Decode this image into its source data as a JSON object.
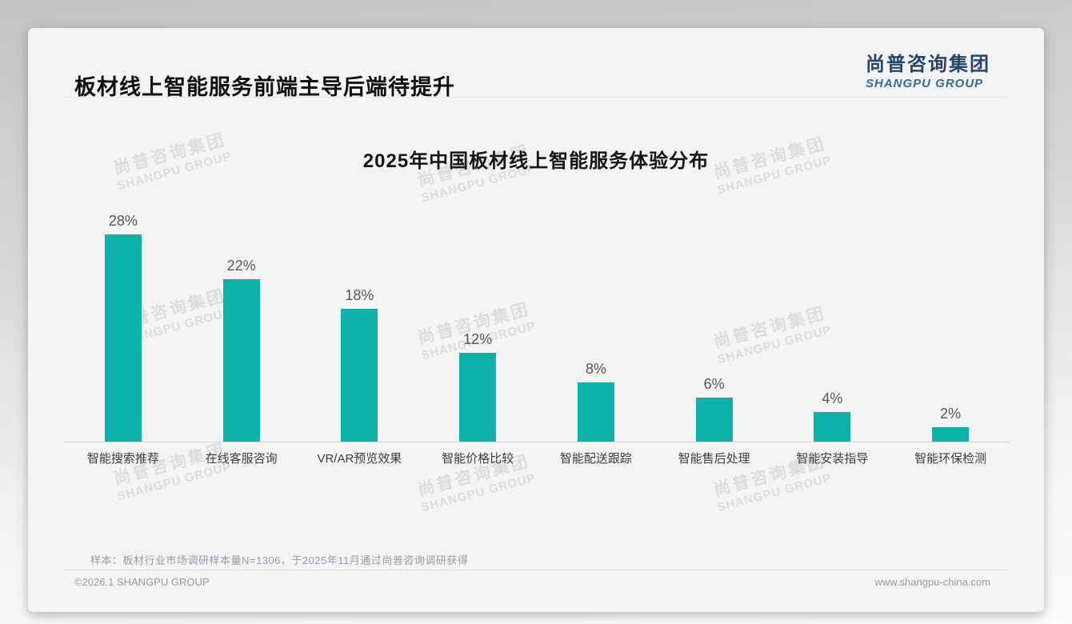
{
  "header": {
    "title": "板材线上智能服务前端主导后端待提升",
    "logo_cn": "尚普咨询集团",
    "logo_en": "SHANGPU GROUP"
  },
  "watermark": {
    "cn": "尚普咨询集团",
    "en": "SHANGPU GROUP"
  },
  "chart_data": {
    "type": "bar",
    "title": "2025年中国板材线上智能服务体验分布",
    "categories": [
      "智能搜索推荐",
      "在线客服咨询",
      "VR/AR预览效果",
      "智能价格比较",
      "智能配送跟踪",
      "智能售后处理",
      "智能安装指导",
      "智能环保检测"
    ],
    "values": [
      28,
      22,
      18,
      12,
      8,
      6,
      4,
      2
    ],
    "value_suffix": "%",
    "xlabel": "",
    "ylabel": "",
    "ylim": [
      0,
      30
    ],
    "grid": false,
    "legend_position": "none",
    "bar_color": "#0db3ab"
  },
  "note": "样本：板材行业市场调研样本量N=1306，于2025年11月通过尚普咨询调研获得",
  "footer": {
    "left": "©2026.1 SHANGPU GROUP",
    "right": "www.shangpu-china.com"
  }
}
